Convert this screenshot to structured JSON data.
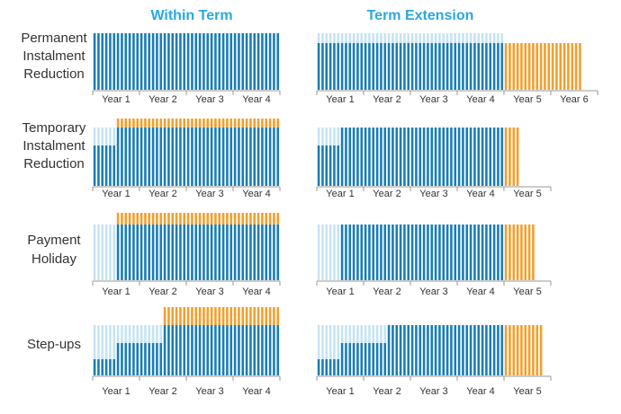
{
  "columns": [
    "Within Term",
    "Term Extension"
  ],
  "rows": [
    {
      "label_lines": [
        "Permanent",
        "Instalment",
        "Reduction"
      ],
      "within_years": [
        "Year 1",
        "Year 2",
        "Year 3",
        "Year 4"
      ],
      "extension_years": [
        "Year 1",
        "Year 2",
        "Year 3",
        "Year 4",
        "Year 5",
        "Year 6"
      ]
    },
    {
      "label_lines": [
        "Temporary",
        "Instalment",
        "Reduction"
      ],
      "within_years": [
        "Year 1",
        "Year 2",
        "Year 3",
        "Year 4"
      ],
      "extension_years": [
        "Year 1",
        "Year 2",
        "Year 3",
        "Year 4",
        "Year 5"
      ]
    },
    {
      "label_lines": [
        "Payment",
        "Holiday"
      ],
      "within_years": [
        "Year 1",
        "Year 2",
        "Year 3",
        "Year 4"
      ],
      "extension_years": [
        "Year 1",
        "Year 2",
        "Year 3",
        "Year 4",
        "Year 5"
      ]
    },
    {
      "label_lines": [
        "Step-ups"
      ],
      "within_years": [
        "Year 1",
        "Year 2",
        "Year 3",
        "Year 4"
      ],
      "extension_years": [
        "Year 1",
        "Year 2",
        "Year 3",
        "Year 4",
        "Year 5"
      ]
    }
  ]
}
